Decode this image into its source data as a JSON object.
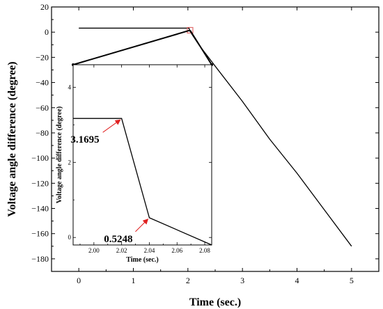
{
  "chart_data": [
    {
      "type": "line",
      "xlabel": "Time (sec.)",
      "ylabel": "Voltage angle difference (degree)",
      "xlim": [
        -0.5,
        5.5
      ],
      "ylim": [
        -190,
        20
      ],
      "xticks": [
        0,
        1,
        2,
        3,
        4,
        5
      ],
      "yticks": [
        20,
        0,
        -20,
        -40,
        -60,
        -80,
        -100,
        -120,
        -140,
        -160,
        -180
      ],
      "tick_labels_x": [
        "0",
        "1",
        "2",
        "3",
        "4",
        "5"
      ],
      "tick_labels_y": [
        "20",
        "0",
        "−20",
        "−40",
        "−60",
        "−80",
        "−100",
        "−120",
        "−140",
        "−160",
        "−180"
      ],
      "series": [
        {
          "x": [
            0,
            2.02,
            2.04,
            2.2,
            2.5,
            3.0,
            3.5,
            4.0,
            4.5,
            5.0
          ],
          "y": [
            3.1695,
            3.1695,
            0.5248,
            -10,
            -27,
            -55,
            -85,
            -112,
            -141,
            -170
          ],
          "color": "#000000"
        }
      ],
      "zoom_marker": {
        "x": 2.04,
        "y": 1.5,
        "color": "#e06b6b"
      }
    },
    {
      "type": "line",
      "role": "inset",
      "xlabel": "Time (sec.)",
      "ylabel": "Voltage angle difference (degree)",
      "xlim": [
        1.985,
        2.085
      ],
      "ylim": [
        -0.2,
        4.6
      ],
      "xticks": [
        2.0,
        2.02,
        2.04,
        2.06,
        2.08
      ],
      "yticks": [
        0,
        2,
        4
      ],
      "tick_labels_x": [
        "2.00",
        "2.02",
        "2.04",
        "2.06",
        "2.08"
      ],
      "tick_labels_y": [
        "0",
        "2",
        "4"
      ],
      "series": [
        {
          "x": [
            1.985,
            2.02,
            2.04,
            2.085
          ],
          "y": [
            3.1695,
            3.1695,
            0.5248,
            -0.2
          ],
          "color": "#000000"
        }
      ],
      "annotations": [
        {
          "text": "3.1695",
          "x": 2.02,
          "y": 3.1695
        },
        {
          "text": "0.5248",
          "x": 2.04,
          "y": 0.5248
        }
      ]
    }
  ]
}
